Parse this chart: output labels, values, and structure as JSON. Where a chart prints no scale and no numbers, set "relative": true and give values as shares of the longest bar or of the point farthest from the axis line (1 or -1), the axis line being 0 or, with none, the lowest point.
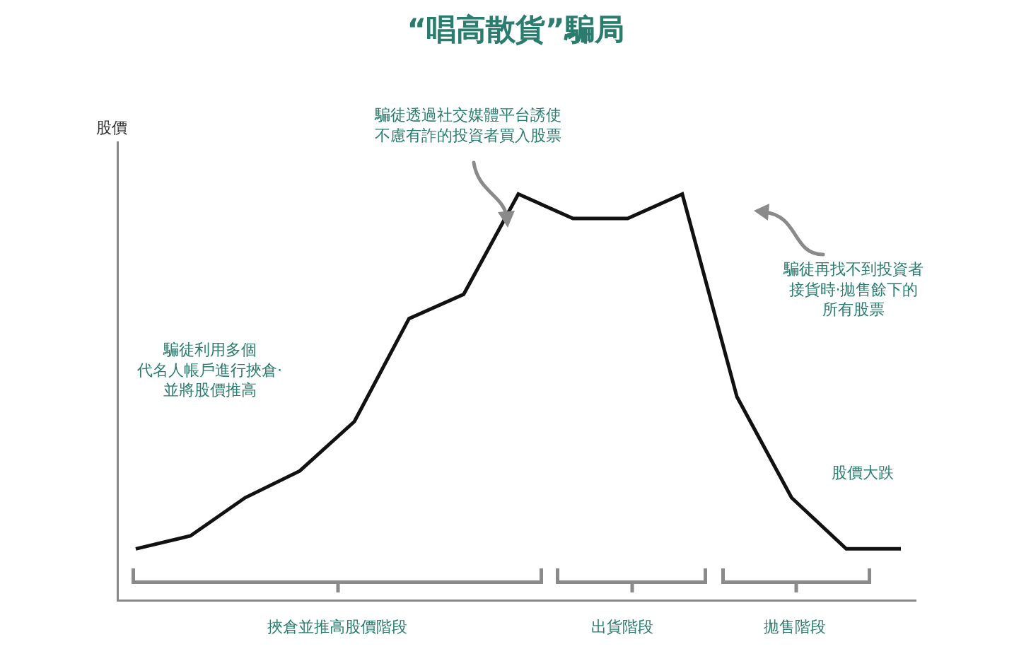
{
  "chart_data": {
    "type": "line",
    "title": "“唱高散貨”騙局",
    "ylabel": "股價",
    "relative": true,
    "categories": [
      null,
      null,
      null,
      null,
      null,
      null,
      null,
      null,
      null,
      null,
      null,
      null,
      null,
      null,
      null
    ],
    "series": [
      {
        "color": "#111111",
        "values": [
          0.125,
          0.157,
          0.251,
          0.317,
          0.439,
          0.693,
          0.753,
          1,
          0.94,
          0.94,
          1,
          0.5,
          0.251,
          0.125,
          0.125
        ]
      }
    ],
    "annotations": [
      "騙徒透過社交媒體平台誘使不慮有詐的投資者買入股票",
      "騙徒再找不到投資者接貨時·拋售餘下的所有股票",
      "騙徒利用多個代名人帳戶進行挾倉·並將股價推高",
      "股價大跌",
      "挾倉並推高股價階段",
      "出貨階段",
      "拋售階段"
    ],
    "grid": false,
    "marker": "none",
    "line_style": "solid"
  }
}
